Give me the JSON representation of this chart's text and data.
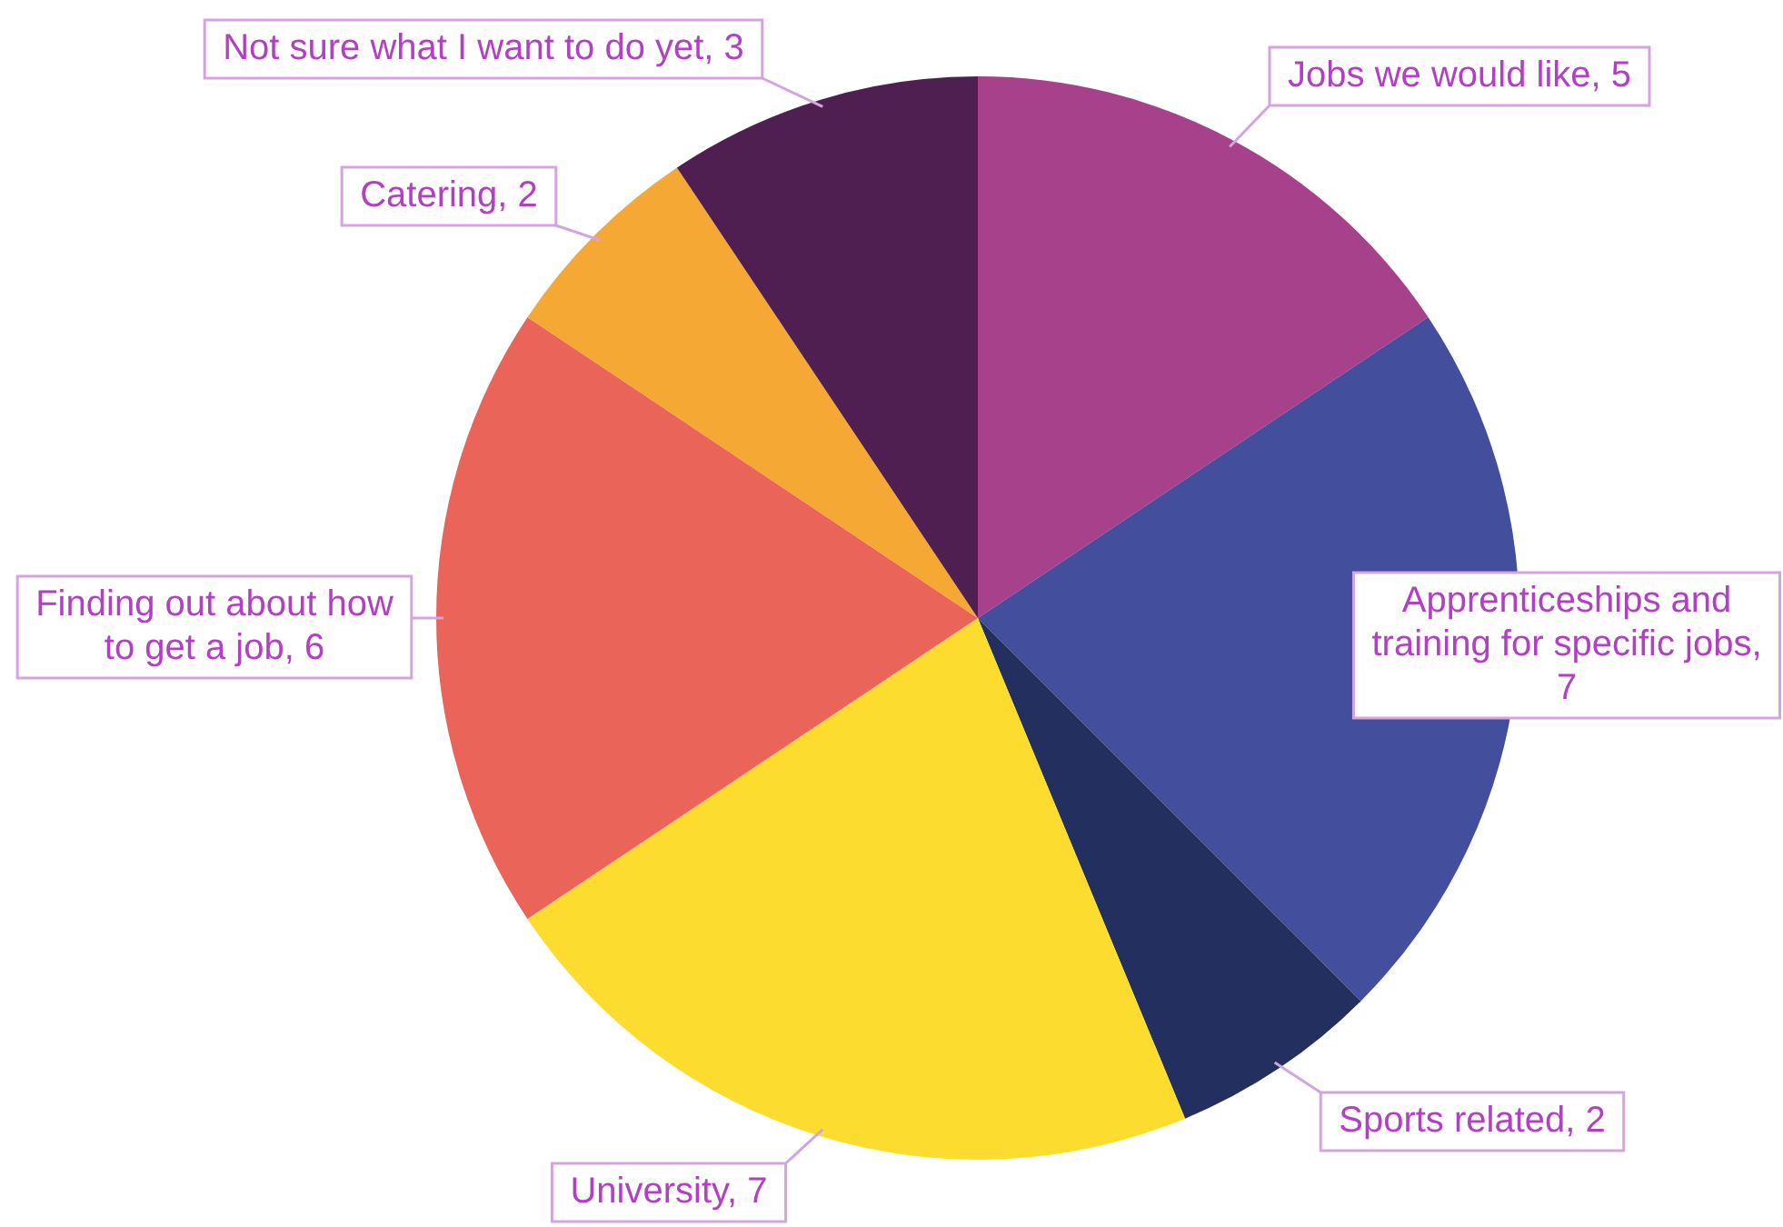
{
  "chart_data": {
    "type": "pie",
    "categories": [
      "Jobs we would like, 5",
      "Apprenticeships and training for specific jobs, 7",
      "Sports related, 2",
      "University, 7",
      "Finding out about how to get a job, 6",
      "Catering, 2",
      "Not sure what I want to do yet, 3"
    ],
    "values": [
      5,
      7,
      2,
      7,
      6,
      2,
      3
    ],
    "colors": [
      "#a8418b",
      "#434e9c",
      "#232f5f",
      "#fcdc2e",
      "#ea6459",
      "#f5a833",
      "#4f1f52"
    ],
    "legend": false
  }
}
